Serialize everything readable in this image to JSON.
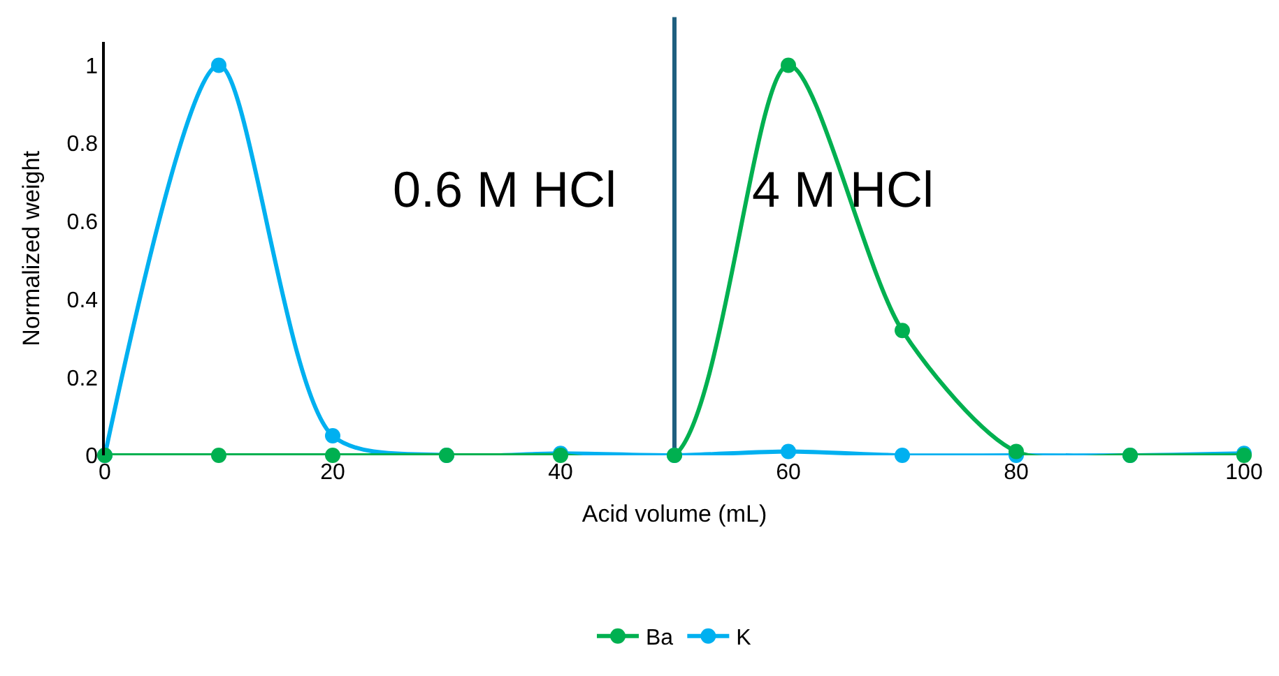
{
  "chart_data": {
    "type": "line",
    "xlabel": "Acid volume (mL)",
    "ylabel": "Normalized weight",
    "x": [
      0,
      10,
      20,
      30,
      40,
      50,
      60,
      70,
      80,
      90,
      100
    ],
    "series": [
      {
        "name": "Ba",
        "color": "#00b050",
        "values": [
          0,
          0,
          0,
          0,
          0,
          0,
          1,
          0.32,
          0.01,
          0,
          0
        ]
      },
      {
        "name": "K",
        "color": "#00b0f0",
        "values": [
          0,
          1,
          0.05,
          0,
          0.005,
          0,
          0.01,
          0,
          0,
          0,
          0.005
        ]
      }
    ],
    "xlim": [
      0,
      100
    ],
    "xticks": [
      0,
      20,
      40,
      60,
      80,
      100
    ],
    "ylim": [
      0,
      1.06
    ],
    "yticks": [
      0,
      0.2,
      0.4,
      0.6,
      0.8,
      1
    ],
    "ref_lines": [
      {
        "axis": "x",
        "value": 50,
        "color": "#1f5f7f"
      }
    ],
    "annotations": [
      "0.6 M HCl",
      "4 M HCl"
    ],
    "grid": false,
    "legend": "bottom",
    "marker": "circle",
    "line_style": "solid"
  }
}
